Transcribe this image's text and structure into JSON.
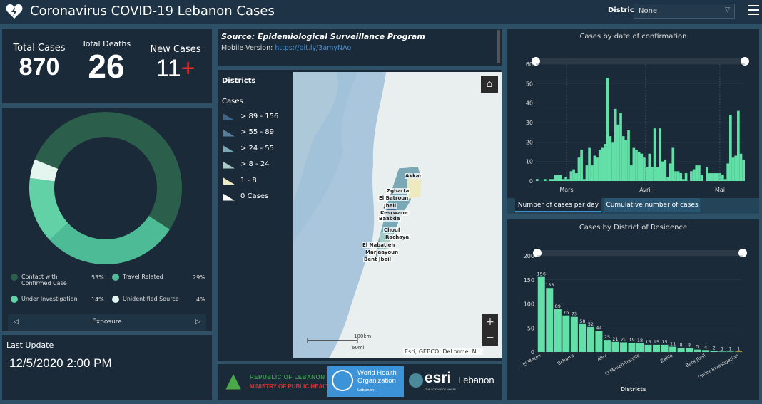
{
  "header": {
    "title": "Coronavirus COVID-19 Lebanon Cases",
    "district_label": "District",
    "district_value": "None"
  },
  "stats": {
    "total_cases_label": "Total Cases",
    "total_cases": "870",
    "total_deaths_label": "Total Deaths",
    "total_deaths": "26",
    "new_cases_label": "New Cases",
    "new_cases": "11",
    "new_cases_icon": "plus-icon",
    "accent": "#e0302a"
  },
  "exposure": {
    "title": "Exposure",
    "slices": [
      {
        "label": "Contact with Confirmed Case",
        "pct_label": "53%",
        "value": 53,
        "color": "#2c5e4c"
      },
      {
        "label": "Travel Related",
        "pct_label": "29%",
        "value": 29,
        "color": "#4dbb95"
      },
      {
        "label": "Under Investigation",
        "pct_label": "14%",
        "value": 14,
        "color": "#62d1a6"
      },
      {
        "label": "Unidentified Source",
        "pct_label": "4%",
        "value": 4,
        "color": "#e4f5ef"
      }
    ]
  },
  "last_update": {
    "label": "Last Update",
    "value": "12/5/2020 2:00 PM"
  },
  "source": {
    "title": "Source: Epidemiological Surveillance Program",
    "mobile_label": "Mobile Version:",
    "mobile_link": "https://bit.ly/3amyNAo"
  },
  "map": {
    "legend_title": "Districts",
    "legend_subtitle": "Cases",
    "classes": [
      {
        "label": "> 89 - 156",
        "color": "#3f6688"
      },
      {
        "label": "> 55 - 89",
        "color": "#56809e"
      },
      {
        "label": "> 24 - 55",
        "color": "#7aa8b4"
      },
      {
        "label": "> 8 - 24",
        "color": "#a7cbc6"
      },
      {
        "label": "1 - 8",
        "color": "#eeeac0"
      },
      {
        "label": "0 Cases",
        "color": "#ffffff"
      }
    ],
    "district_labels": [
      "Akkar",
      "Zgharta",
      "El Batroun",
      "Jbeil",
      "Kesrwane",
      "Baabda",
      "Chouf",
      "Rachaya",
      "El Nabatieh",
      "Marjaayoun",
      "Bent Jbeil"
    ],
    "scale_km": "100km",
    "scale_mi": "60mi",
    "attribution": "Esri, GEBCO, DeLorme, N...",
    "zoom_in": "+",
    "zoom_out": "−"
  },
  "logos": {
    "moph_line1": "REPUBLIC OF LEBANON",
    "moph_line2": "MINISTRY OF PUBLIC HEALTH",
    "who_line1": "World Health",
    "who_line2": "Organization",
    "who_line3": "Lebanon",
    "esri": "esri",
    "esri_tag": "THE SCIENCE OF WHERE",
    "esri_country": "Lebanon"
  },
  "tabs": [
    {
      "label": "Number of cases per day",
      "active": true
    },
    {
      "label": "Cumulative number of cases",
      "active": false
    }
  ],
  "chart_data": [
    {
      "type": "bar",
      "title": "Cases by  date of confirmation",
      "ylim": [
        0,
        60
      ],
      "yticks": [
        0,
        10,
        20,
        30,
        40,
        50,
        60
      ],
      "xtick_labels": [
        "Mars",
        "Avril",
        "Mai"
      ],
      "values": [
        1,
        0,
        0,
        1,
        0,
        1,
        1,
        3,
        3,
        3,
        1,
        2,
        1,
        5,
        6,
        4,
        12,
        16,
        1,
        8,
        17,
        8,
        13,
        12,
        16,
        17,
        19,
        53,
        23,
        20,
        37,
        29,
        35,
        23,
        21,
        26,
        8,
        17,
        16,
        15,
        14,
        12,
        7,
        14,
        7,
        27,
        7,
        27,
        10,
        11,
        2,
        9,
        17,
        5,
        5,
        4,
        1,
        4,
        0,
        5,
        6,
        8,
        8,
        3,
        0,
        7,
        4,
        4,
        4,
        4,
        4,
        3,
        1,
        9,
        34,
        12,
        13,
        36,
        14,
        11
      ],
      "color": "#62e0a8",
      "grid": true
    },
    {
      "type": "bar",
      "title": "Cases by District of Residence",
      "xlabel": "Districts",
      "ylim": [
        0,
        200
      ],
      "yticks": [
        0,
        50,
        100,
        150,
        200
      ],
      "categories_shown": [
        "El Meten",
        "Bcharre",
        "Aley",
        "El Minieh-Dannie",
        "Zahle",
        "Bent Jbeil",
        "Under Investigation"
      ],
      "values": [
        156,
        133,
        89,
        76,
        73,
        58,
        52,
        44,
        25,
        21,
        20,
        19,
        18,
        15,
        15,
        15,
        11,
        8,
        8,
        5,
        4,
        2,
        1,
        1,
        1
      ],
      "color": "#62e0a8",
      "last_color": "#e8c840",
      "grid": true
    }
  ]
}
